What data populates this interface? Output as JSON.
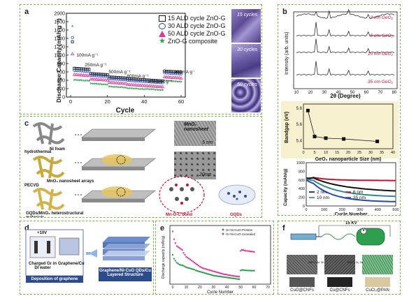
{
  "panel_a": {
    "label": "a",
    "ylabel": "Discharge Capacity (mAh g⁻¹)",
    "xlabel": "Cycle",
    "legend": [
      "15 ALD cycle ZnO-G",
      "30 ALD cycle ZnO-G",
      "50 ALD cycle ZnO-G",
      "ZnO-G composite"
    ],
    "rates": [
      "100mA g⁻¹",
      "250mA g⁻¹",
      "500mA g⁻¹",
      "800mA g⁻¹",
      "1000mA g⁻¹",
      "100mA g⁻¹"
    ],
    "sem_labels": [
      "15 cycles",
      "30 cycles",
      "50 cycles"
    ],
    "x_ticks": [
      "0",
      "20",
      "40",
      "60"
    ],
    "y_ticks": [
      "0",
      "200",
      "400",
      "600",
      "800",
      "1000",
      "1200",
      "1400",
      "1600",
      "1800",
      "2000"
    ]
  },
  "panel_b": {
    "label": "b",
    "xrd": {
      "ylabel": "Intensity (arb. units)",
      "xlabel": "2θ (Degree)",
      "x_ticks": [
        "10",
        "20",
        "30",
        "40",
        "50",
        "60",
        "70",
        "80"
      ],
      "traces": [
        "2 nm GeO₂",
        "6 nm GeO₂",
        "10 nm GeO₂",
        "35 nm GeO₂"
      ]
    },
    "bandgap": {
      "ylabel": "Bandgap (eV)",
      "xlabel": "GeO₂ nanoparticle Size (nm)",
      "y_ticks": [
        "5.4",
        "5.6",
        "5.8"
      ],
      "x_ticks": [
        "0",
        "5",
        "10",
        "15",
        "20",
        "25",
        "30",
        "35",
        "40"
      ]
    },
    "capacity": {
      "ylabel": "Capacity (mAh/g)",
      "xlabel": "Cycle Number",
      "y_ticks": [
        "0",
        "200",
        "400",
        "600",
        "800",
        "1000"
      ],
      "x_ticks": [
        "0",
        "100",
        "200",
        "300",
        "400",
        "500"
      ],
      "legend": [
        "2 nm",
        "6 nm",
        "10 nm",
        "35 nm"
      ]
    }
  },
  "panel_c": {
    "label": "c",
    "labels": [
      "Ni foam",
      "hydrothermal",
      "MnO₂ nanosheet arrays",
      "PECVD",
      "GQDs/MnO₂ heterostructural materials",
      "Mn-O-C bond",
      "GQDs"
    ],
    "sem_caption": "MnO₂ nanosheet",
    "scale_bars": [
      "5 nm",
      "20nm"
    ]
  },
  "panel_d": {
    "label": "d",
    "labels": [
      "Charged Gr in DI water",
      "Graphene/Cu",
      "Deposition of graphene",
      "Graphene/Ni-CuO QDs/Cu Layered Structure"
    ],
    "voltage": "+10V"
  },
  "panel_e": {
    "label": "e",
    "ylabel": "Discharge capacity (mAh/g)",
    "xlabel": "Cycle Number",
    "legend": [
      "Gr-Ni-CuO-Pristine",
      "Gr-Ni-CuO-Annealed"
    ],
    "x_ticks": [
      "0",
      "10",
      "20",
      "30",
      "40",
      "50",
      "60",
      "70"
    ]
  },
  "panel_f": {
    "label": "f",
    "voltage": "15 KV",
    "voltage_symbol": "V",
    "products": [
      "CuO@CNFs",
      "Cu@CNFs",
      "CuCl₂@PAN"
    ],
    "steps": [
      "300°C Air 3h",
      "500°C N₂ 3h"
    ]
  },
  "colors": {
    "border": "#7ab648",
    "sem_purple": "#6f5ea8",
    "accent_red": "#c8102e",
    "series_black": "#111111",
    "series_blue": "#2948a8",
    "series_pink": "#e0389a",
    "series_green": "#2e9e4f"
  }
}
